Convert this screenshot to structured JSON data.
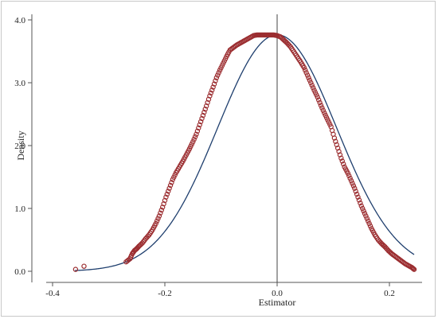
{
  "chart_data": {
    "type": "scatter",
    "xlabel": "Estimator",
    "ylabel": "Density",
    "xlim": [
      -0.4,
      0.25
    ],
    "ylim": [
      0,
      4.0
    ],
    "x_ticks": [
      -0.4,
      -0.2,
      0.0,
      0.2
    ],
    "x_tick_labels": [
      "-0.4",
      "-0.2",
      "0.0",
      "0.2"
    ],
    "y_ticks": [
      0,
      1,
      2,
      3,
      4
    ],
    "y_tick_labels": [
      "0.0",
      "1.0",
      "2.0",
      "3.0",
      "4.0"
    ],
    "reference_line_x": 0.0,
    "grid": false,
    "legend": "none",
    "colors": {
      "points": "#9b2d30",
      "curve": "#1f3f6e",
      "axis": "#555555"
    },
    "normal_curve": {
      "mean": 0.0,
      "sd": 0.106
    },
    "series": [
      {
        "style": "hollow-circle",
        "x": [
          -0.359,
          -0.344,
          -0.269,
          -0.262,
          -0.258,
          -0.254,
          -0.25,
          -0.246,
          -0.24,
          -0.234,
          -0.228,
          -0.222,
          -0.216,
          -0.21,
          -0.204,
          -0.198,
          -0.192,
          -0.186,
          -0.18,
          -0.174,
          -0.168,
          -0.162,
          -0.156,
          -0.15,
          -0.144,
          -0.138,
          -0.132,
          -0.126,
          -0.12,
          -0.114,
          -0.108,
          -0.102,
          -0.096,
          -0.09,
          -0.084,
          -0.078,
          -0.072,
          -0.066,
          -0.06,
          -0.054,
          -0.048,
          -0.042,
          -0.036,
          -0.03,
          -0.024,
          -0.018,
          -0.012,
          -0.006,
          0.0,
          0.006,
          0.012,
          0.018,
          0.024,
          0.03,
          0.036,
          0.042,
          0.048,
          0.054,
          0.06,
          0.066,
          0.072,
          0.078,
          0.084,
          0.09,
          0.096,
          0.102,
          0.108,
          0.114,
          0.12,
          0.126,
          0.132,
          0.138,
          0.144,
          0.15,
          0.156,
          0.162,
          0.168,
          0.174,
          0.18,
          0.186,
          0.192,
          0.198,
          0.204,
          0.21,
          0.216,
          0.222,
          0.228,
          0.234,
          0.24,
          0.244
        ],
        "y": [
          0.03,
          0.08,
          0.15,
          0.2,
          0.28,
          0.33,
          0.36,
          0.4,
          0.45,
          0.52,
          0.58,
          0.66,
          0.76,
          0.88,
          1.02,
          1.18,
          1.32,
          1.46,
          1.57,
          1.66,
          1.75,
          1.85,
          1.95,
          2.06,
          2.18,
          2.33,
          2.48,
          2.63,
          2.79,
          2.93,
          3.08,
          3.2,
          3.31,
          3.42,
          3.52,
          3.56,
          3.6,
          3.63,
          3.66,
          3.69,
          3.72,
          3.75,
          3.76,
          3.76,
          3.76,
          3.76,
          3.76,
          3.76,
          3.75,
          3.73,
          3.68,
          3.63,
          3.57,
          3.49,
          3.41,
          3.33,
          3.24,
          3.12,
          3.0,
          2.88,
          2.77,
          2.64,
          2.52,
          2.41,
          2.3,
          2.12,
          1.96,
          1.8,
          1.66,
          1.56,
          1.44,
          1.32,
          1.18,
          1.04,
          0.92,
          0.8,
          0.68,
          0.58,
          0.5,
          0.44,
          0.39,
          0.33,
          0.28,
          0.24,
          0.2,
          0.16,
          0.12,
          0.09,
          0.06,
          0.03
        ]
      }
    ]
  }
}
